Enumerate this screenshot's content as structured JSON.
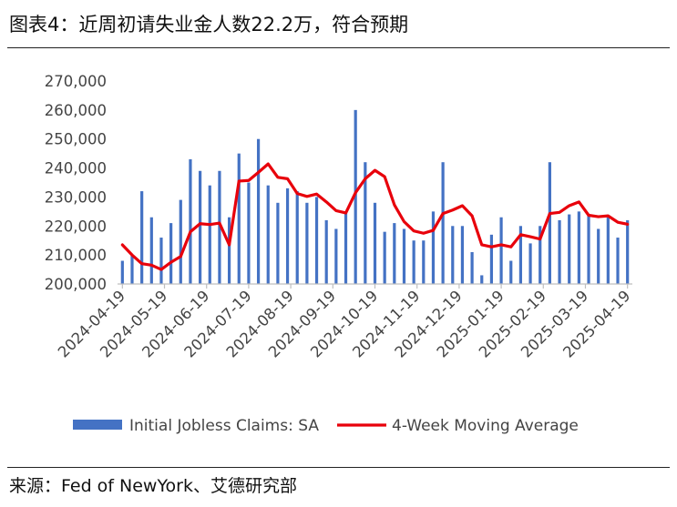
{
  "header": {
    "title": "图表4：近周初请失业金人数22.2万，符合预期"
  },
  "footer": {
    "source": "来源：Fed of NewYork、艾德研究部"
  },
  "chart_data": {
    "type": "bar+line",
    "title": "",
    "xlabel": "",
    "ylabel": "",
    "ylim": [
      200000,
      270000
    ],
    "yticks": [
      200000,
      210000,
      220000,
      230000,
      240000,
      250000,
      260000,
      270000
    ],
    "ytick_labels": [
      "200,000",
      "210,000",
      "220,000",
      "230,000",
      "240,000",
      "250,000",
      "260,000",
      "270,000"
    ],
    "xtick_labels": [
      "2024-04-19",
      "2024-05-19",
      "2024-06-19",
      "2024-07-19",
      "2024-08-19",
      "2024-09-19",
      "2024-10-19",
      "2024-11-19",
      "2024-12-19",
      "2025-01-19",
      "2025-02-19",
      "2025-03-19",
      "2025-04-19"
    ],
    "legend_position": "bottom",
    "colors": {
      "bars": "#4472C4",
      "line": "#E8000B",
      "axis": "#bfbfbf",
      "text": "#444444"
    },
    "series": [
      {
        "name": "Initial Jobless Claims: SA",
        "kind": "bar",
        "values": [
          208000,
          210000,
          232000,
          223000,
          216000,
          221000,
          229000,
          243000,
          239000,
          234000,
          239000,
          223000,
          245000,
          235000,
          250000,
          234000,
          228000,
          233000,
          232000,
          228000,
          230000,
          222000,
          219000,
          225000,
          260000,
          242000,
          228000,
          218000,
          221000,
          219000,
          215000,
          215000,
          225000,
          242000,
          220000,
          220000,
          211000,
          203000,
          217000,
          223000,
          208000,
          220000,
          214000,
          220000,
          242000,
          222000,
          224000,
          225000,
          224000,
          219000,
          223000,
          216000,
          222000
        ]
      },
      {
        "name": "4-Week Moving Average",
        "kind": "line",
        "values": [
          213500,
          210000,
          207000,
          206500,
          205000,
          207500,
          209500,
          218000,
          220800,
          220500,
          221000,
          213500,
          235500,
          235700,
          238500,
          241400,
          236800,
          236300,
          231200,
          230200,
          231000,
          228300,
          225300,
          224500,
          231500,
          236300,
          239200,
          237000,
          227300,
          221500,
          218300,
          217500,
          218500,
          224300,
          225500,
          227000,
          223500,
          213500,
          212800,
          213500,
          212800,
          217000,
          216300,
          215500,
          224300,
          224700,
          227000,
          228300,
          223700,
          223200,
          223500,
          221300,
          220600
        ]
      }
    ]
  }
}
